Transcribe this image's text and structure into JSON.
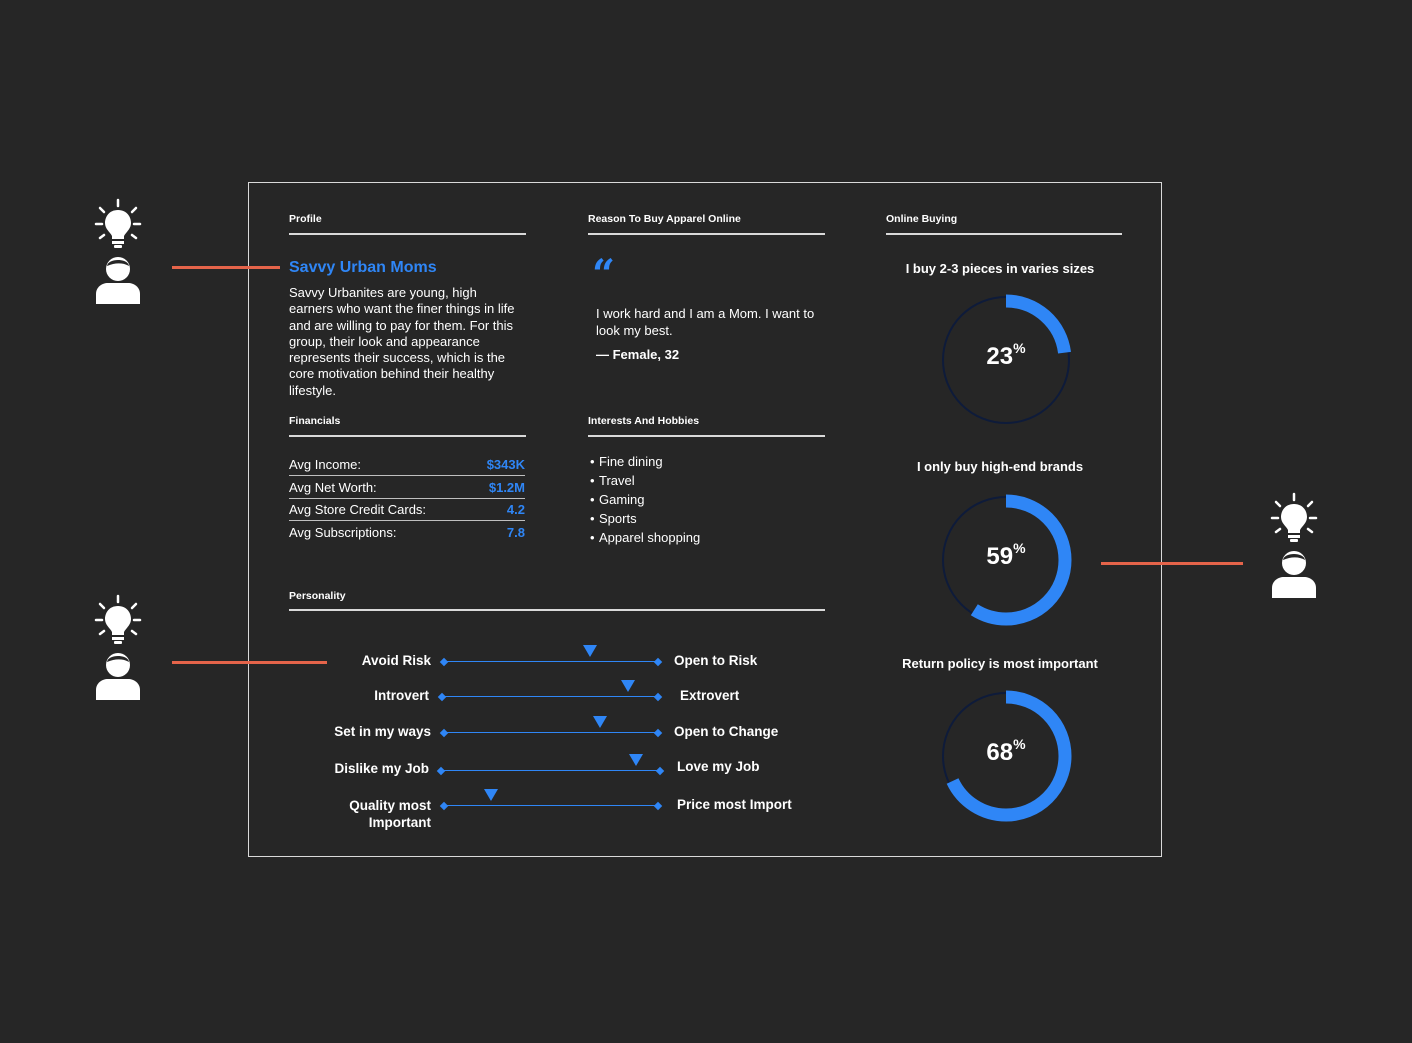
{
  "profile": {
    "section_title": "Profile",
    "name": "Savvy Urban Moms",
    "description_lines": [
      "Savvy Urbanites are young, high",
      "earners who want the finer things in life",
      "and are willing to pay for them. For this",
      "group, their look and appearance",
      "represents their success, which is the",
      "core motivation behind their healthy",
      "lifestyle."
    ]
  },
  "financials": {
    "section_title": "Financials",
    "rows": [
      {
        "label": "Avg Income:",
        "value": "$343K"
      },
      {
        "label": "Avg Net Worth:",
        "value": "$1.2M"
      },
      {
        "label": "Avg Store Credit Cards:",
        "value": "4.2"
      },
      {
        "label": "Avg Subscriptions:",
        "value": "7.8"
      }
    ]
  },
  "reason": {
    "section_title": "Reason To Buy Apparel Online",
    "quote_mark": "“",
    "quote_lines": [
      "I work hard and I am a Mom. I want to",
      "look my best."
    ],
    "author": "— Female, 32"
  },
  "interests": {
    "section_title": "Interests And Hobbies",
    "items": [
      "Fine dining",
      "Travel",
      "Gaming",
      "Sports",
      "Apparel shopping"
    ]
  },
  "personality": {
    "section_title": "Personality",
    "scales": [
      {
        "left": "Avoid Risk",
        "right": "Open to Risk",
        "position": 0.68
      },
      {
        "left": "Introvert",
        "right": "Extrovert",
        "position": 0.86
      },
      {
        "left": "Set in my ways",
        "right": "Open to Change",
        "position": 0.73
      },
      {
        "left": "Dislike my Job",
        "right": "Love my Job",
        "position": 0.89
      },
      {
        "left": "Quality most Important",
        "right": "Price most Import",
        "position": 0.22
      }
    ]
  },
  "online_buying": {
    "section_title": "Online Buying",
    "stats": [
      {
        "label": "I buy 2-3 pieces in varies sizes",
        "value": 23,
        "value_text": "23",
        "unit": "%"
      },
      {
        "label": "I only buy high-end brands",
        "value": 59,
        "value_text": "59",
        "unit": "%"
      },
      {
        "label": "Return policy is most important",
        "value": 68,
        "value_text": "68",
        "unit": "%"
      }
    ]
  },
  "colors": {
    "accent": "#2f86f6",
    "connector": "#e5644a",
    "background": "#262626",
    "track": "#0e1b3a"
  }
}
